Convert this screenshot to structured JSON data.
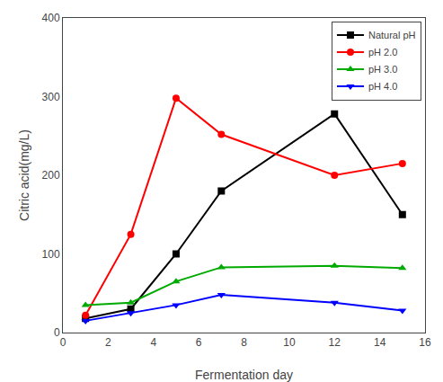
{
  "chart_data": {
    "type": "line",
    "xlabel": "Fermentation day",
    "ylabel": "Citric acid(mg/L)",
    "xlim": [
      0,
      16
    ],
    "ylim": [
      0,
      400
    ],
    "xticks": [
      0,
      2,
      4,
      6,
      8,
      10,
      12,
      14,
      16
    ],
    "yticks": [
      0,
      100,
      200,
      300,
      400
    ],
    "grid": false,
    "legend": "upper right",
    "series": [
      {
        "name": "Natural pH",
        "color": "#000000",
        "marker": "square",
        "x": [
          1,
          3,
          5,
          7,
          12,
          15
        ],
        "values": [
          18,
          30,
          100,
          180,
          278,
          150
        ]
      },
      {
        "name": "pH 2.0",
        "color": "#ff0000",
        "marker": "circle",
        "x": [
          1,
          3,
          5,
          7,
          12,
          15
        ],
        "values": [
          22,
          125,
          298,
          252,
          200,
          215
        ]
      },
      {
        "name": "pH 3.0",
        "color": "#00aa00",
        "marker": "triangle-up",
        "x": [
          1,
          3,
          5,
          7,
          12,
          15
        ],
        "values": [
          35,
          38,
          65,
          83,
          85,
          82
        ]
      },
      {
        "name": "pH 4.0",
        "color": "#0000ff",
        "marker": "triangle-down",
        "x": [
          1,
          3,
          5,
          7,
          12,
          15
        ],
        "values": [
          15,
          25,
          35,
          48,
          38,
          28
        ]
      }
    ]
  }
}
